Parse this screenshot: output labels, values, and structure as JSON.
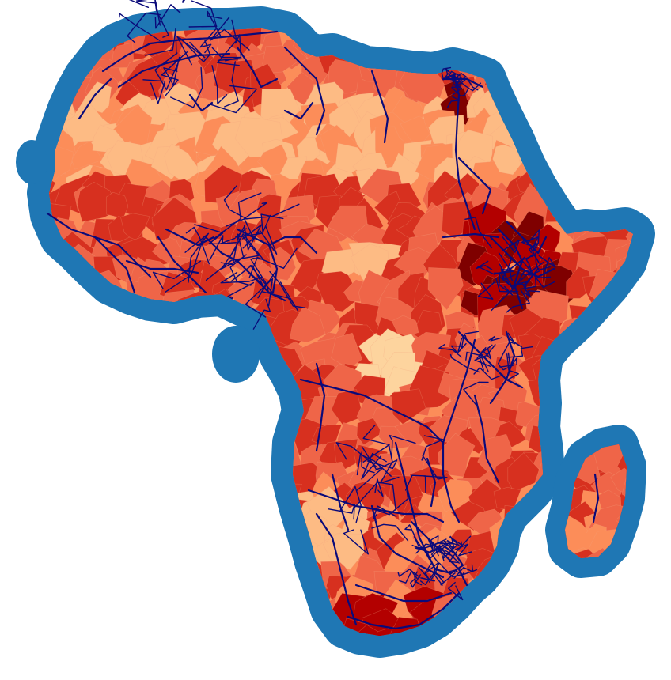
{
  "map": {
    "colors": {
      "background": "#ffffff",
      "sea_buffer": "#1f77b4",
      "network_lines": "#0a0a7a",
      "region_scale": [
        "#fdd49e",
        "#fdbb84",
        "#fc8d59",
        "#ef6548",
        "#d7301f",
        "#b30000",
        "#7f0000"
      ]
    },
    "layers": [
      "coastal-sea-buffer",
      "land-regions-choropleth",
      "transport-network-lines"
    ],
    "regions_named": [
      "africa-mainland",
      "madagascar",
      "bioko-island",
      "canary-islands-buffer"
    ],
    "legend": null,
    "title": null
  }
}
